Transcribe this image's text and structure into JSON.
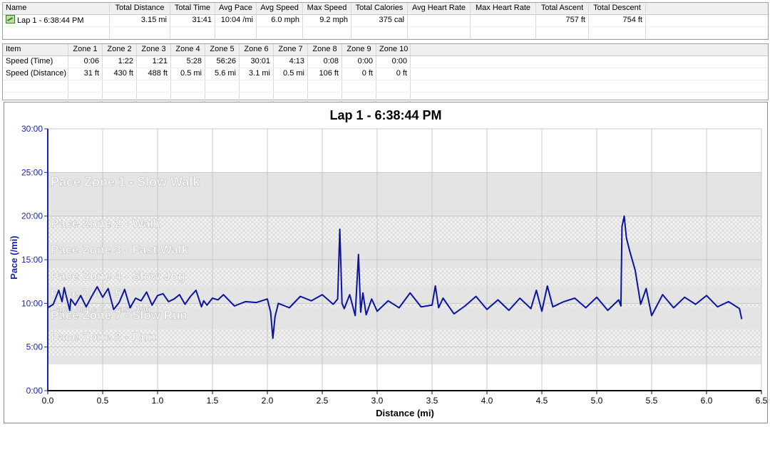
{
  "summary_table": {
    "columns": [
      "Name",
      "Total Distance",
      "Total Time",
      "Avg Pace",
      "Avg Speed",
      "Max Speed",
      "Total Calories",
      "Avg Heart Rate",
      "Max Heart Rate",
      "Total Ascent",
      "Total Descent"
    ],
    "rows": [
      [
        "Lap 1 - 6:38:44 PM",
        "3.15 mi",
        "31:41",
        "10:04 /mi",
        "6.0 mph",
        "9.2 mph",
        "375 cal",
        "",
        "",
        "757 ft",
        "754 ft"
      ]
    ]
  },
  "zones_table": {
    "columns": [
      "Item",
      "Zone 1",
      "Zone 2",
      "Zone 3",
      "Zone 4",
      "Zone 5",
      "Zone 6",
      "Zone 7",
      "Zone 8",
      "Zone 9",
      "Zone 10"
    ],
    "rows": [
      [
        "Speed (Time)",
        "0:06",
        "1:22",
        "1:21",
        "5:28",
        "56:26",
        "30:01",
        "4:13",
        "0:08",
        "0:00",
        "0:00"
      ],
      [
        "Speed (Distance)",
        "31 ft",
        "430 ft",
        "488 ft",
        "0.5 mi",
        "5.6 mi",
        "3.1 mi",
        "0.5 mi",
        "106 ft",
        "0 ft",
        "0 ft"
      ]
    ]
  },
  "chart_data": {
    "type": "line",
    "title": "Lap 1 - 6:38:44 PM",
    "xlabel": "Distance (mi)",
    "ylabel": "Pace (/mi)",
    "xlim": [
      0,
      6.5
    ],
    "ylim": [
      0,
      30
    ],
    "x_ticks": [
      "0.0",
      "0.5",
      "1.0",
      "1.5",
      "2.0",
      "2.5",
      "3.0",
      "3.5",
      "4.0",
      "4.5",
      "5.0",
      "5.5",
      "6.0",
      "6.5"
    ],
    "y_ticks": [
      "0:00",
      "5:00",
      "10:00",
      "15:00",
      "20:00",
      "25:00",
      "30:00"
    ],
    "grid": true,
    "line_color": "#0a14a0",
    "zones": [
      {
        "name": "Pace Zone 1 - Slow Walk",
        "from": 20,
        "to": 25
      },
      {
        "name": "Pace Zone 2 - Walk",
        "from": 17,
        "to": 20
      },
      {
        "name": "Pace Zone 3 - Fast Walk",
        "from": 14,
        "to": 17
      },
      {
        "name": "Pace Zone 4 - Slow Jog",
        "from": 12,
        "to": 14
      },
      {
        "name": "Pace Zone 5",
        "from": 10,
        "to": 12
      },
      {
        "name": "Pace Zone 6 - Fast Jog",
        "from": 9.5,
        "to": 10
      },
      {
        "name": "Pace Zone 7 - Slow Run",
        "from": 7,
        "to": 9.5
      },
      {
        "name": "Pace Zone 8 - Run",
        "from": 4,
        "to": 7
      },
      {
        "name": "",
        "from": 3,
        "to": 4
      }
    ],
    "series": [
      {
        "x": [
          0.0,
          0.05,
          0.1,
          0.13,
          0.15,
          0.2,
          0.21,
          0.25,
          0.3,
          0.35,
          0.4,
          0.45,
          0.5,
          0.55,
          0.6,
          0.65,
          0.7,
          0.75,
          0.8,
          0.85,
          0.9,
          0.95,
          1.0,
          1.05,
          1.1,
          1.15,
          1.2,
          1.25,
          1.3,
          1.35,
          1.4,
          1.42,
          1.45,
          1.5,
          1.55,
          1.6,
          1.7,
          1.8,
          1.9,
          2.0,
          2.03,
          2.05,
          2.07,
          2.1,
          2.2,
          2.3,
          2.4,
          2.5,
          2.6,
          2.64,
          2.66,
          2.68,
          2.7,
          2.75,
          2.8,
          2.83,
          2.85,
          2.87,
          2.9,
          2.95,
          3.0,
          3.1,
          3.2,
          3.3,
          3.4,
          3.5,
          3.53,
          3.56,
          3.6,
          3.7,
          3.8,
          3.9,
          4.0,
          4.1,
          4.2,
          4.3,
          4.4,
          4.45,
          4.5,
          4.55,
          4.6,
          4.7,
          4.8,
          4.9,
          5.0,
          5.1,
          5.2,
          5.22,
          5.23,
          5.25,
          5.27,
          5.3,
          5.35,
          5.4,
          5.45,
          5.5,
          5.6,
          5.7,
          5.8,
          5.9,
          6.0,
          6.1,
          6.2,
          6.3,
          6.32
        ],
        "y": [
          9.5,
          9.9,
          11.5,
          10.2,
          11.8,
          9.2,
          10.5,
          9.8,
          10.9,
          9.6,
          10.8,
          11.9,
          10.7,
          11.7,
          9.3,
          10.1,
          11.6,
          9.5,
          10.6,
          10.3,
          11.3,
          9.8,
          10.9,
          11.1,
          10.2,
          10.5,
          11.0,
          9.9,
          10.8,
          11.5,
          9.6,
          10.3,
          9.8,
          10.6,
          10.4,
          11.0,
          9.7,
          10.2,
          10.1,
          10.5,
          9.0,
          6.0,
          8.5,
          10.0,
          9.5,
          10.8,
          10.3,
          11.0,
          9.9,
          10.5,
          18.5,
          10.0,
          9.4,
          11.0,
          8.6,
          15.6,
          9.0,
          11.2,
          8.7,
          10.5,
          9.1,
          10.3,
          9.5,
          11.2,
          9.6,
          9.8,
          12.0,
          9.5,
          10.6,
          8.8,
          9.7,
          10.8,
          9.3,
          10.4,
          9.2,
          10.6,
          9.4,
          11.5,
          9.1,
          12.0,
          9.6,
          10.2,
          10.6,
          9.5,
          10.7,
          9.2,
          10.4,
          9.7,
          18.8,
          20.0,
          17.5,
          16.0,
          13.8,
          9.9,
          11.7,
          8.6,
          11.0,
          9.5,
          10.7,
          9.9,
          10.9,
          9.6,
          10.2,
          9.4,
          8.2
        ]
      }
    ]
  }
}
